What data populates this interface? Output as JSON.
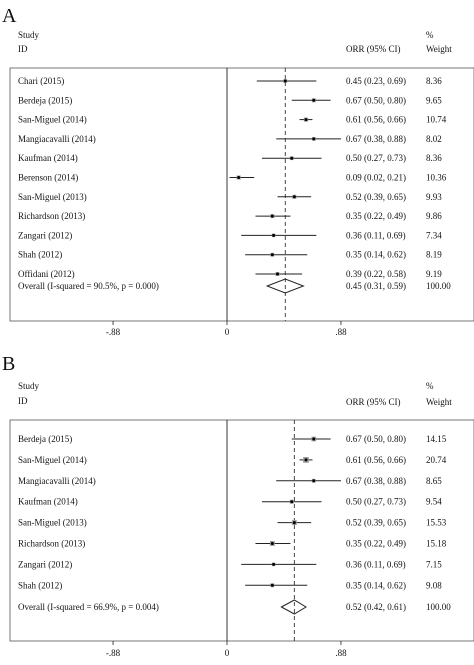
{
  "chart_data": [
    {
      "type": "forest",
      "panel": "A",
      "header": {
        "study": "Study",
        "id": "ID",
        "effect": "ORR (95% CI)",
        "pct": "%",
        "weight": "Weight"
      },
      "xticks": [
        {
          "value": -0.88,
          "label": "-.88"
        },
        {
          "value": 0,
          "label": "0"
        },
        {
          "value": 0.88,
          "label": ".88"
        }
      ],
      "xlim": [
        -0.88,
        0.88
      ],
      "pooled_line": 0.45,
      "studies": [
        {
          "name": "Chari (2015)",
          "est": 0.45,
          "lo": 0.23,
          "hi": 0.69,
          "ci_text": "0.45 (0.23, 0.69)",
          "weight": "8.36"
        },
        {
          "name": "Berdeja (2015)",
          "est": 0.67,
          "lo": 0.5,
          "hi": 0.8,
          "ci_text": "0.67 (0.50, 0.80)",
          "weight": "9.65"
        },
        {
          "name": "San-Miguel (2014)",
          "est": 0.61,
          "lo": 0.56,
          "hi": 0.66,
          "ci_text": "0.61 (0.56, 0.66)",
          "weight": "10.74"
        },
        {
          "name": "Mangiacavalli (2014)",
          "est": 0.67,
          "lo": 0.38,
          "hi": 0.88,
          "ci_text": "0.67 (0.38, 0.88)",
          "weight": "8.02"
        },
        {
          "name": "Kaufman (2014)",
          "est": 0.5,
          "lo": 0.27,
          "hi": 0.73,
          "ci_text": "0.50 (0.27, 0.73)",
          "weight": "8.36"
        },
        {
          "name": "Berenson (2014)",
          "est": 0.09,
          "lo": 0.02,
          "hi": 0.21,
          "ci_text": "0.09 (0.02, 0.21)",
          "weight": "10.36"
        },
        {
          "name": "San-Miguel (2013)",
          "est": 0.52,
          "lo": 0.39,
          "hi": 0.65,
          "ci_text": "0.52 (0.39, 0.65)",
          "weight": "9.93"
        },
        {
          "name": "Richardson (2013)",
          "est": 0.35,
          "lo": 0.22,
          "hi": 0.49,
          "ci_text": "0.35 (0.22, 0.49)",
          "weight": "9.86"
        },
        {
          "name": "Zangari (2012)",
          "est": 0.36,
          "lo": 0.11,
          "hi": 0.69,
          "ci_text": "0.36 (0.11, 0.69)",
          "weight": "7.34"
        },
        {
          "name": "Shah (2012)",
          "est": 0.35,
          "lo": 0.14,
          "hi": 0.62,
          "ci_text": "0.35 (0.14, 0.62)",
          "weight": "8.19"
        },
        {
          "name": "Offidani (2012)",
          "est": 0.39,
          "lo": 0.22,
          "hi": 0.58,
          "ci_text": "0.39 (0.22, 0.58)",
          "weight": "9.19"
        }
      ],
      "overall": {
        "name": "Overall  (I-squared = 90.5%, p = 0.000)",
        "est": 0.45,
        "lo": 0.31,
        "hi": 0.59,
        "ci_text": "0.45 (0.31, 0.59)",
        "weight": "100.00"
      }
    },
    {
      "type": "forest",
      "panel": "B",
      "header": {
        "study": "Study",
        "id": "ID",
        "effect": "ORR (95% CI)",
        "pct": "%",
        "weight": "Weight"
      },
      "xticks": [
        {
          "value": -0.88,
          "label": "-.88"
        },
        {
          "value": 0,
          "label": "0"
        },
        {
          "value": 0.88,
          "label": ".88"
        }
      ],
      "xlim": [
        -0.88,
        0.88
      ],
      "pooled_line": 0.52,
      "studies": [
        {
          "name": "Berdeja (2015)",
          "est": 0.67,
          "lo": 0.5,
          "hi": 0.8,
          "ci_text": "0.67 (0.50, 0.80)",
          "weight": "14.15"
        },
        {
          "name": "San-Miguel (2014)",
          "est": 0.61,
          "lo": 0.56,
          "hi": 0.66,
          "ci_text": "0.61 (0.56, 0.66)",
          "weight": "20.74"
        },
        {
          "name": "Mangiacavalli (2014)",
          "est": 0.67,
          "lo": 0.38,
          "hi": 0.88,
          "ci_text": "0.67 (0.38, 0.88)",
          "weight": "8.65"
        },
        {
          "name": "Kaufman (2014)",
          "est": 0.5,
          "lo": 0.27,
          "hi": 0.73,
          "ci_text": "0.50 (0.27, 0.73)",
          "weight": "9.54"
        },
        {
          "name": "San-Miguel (2013)",
          "est": 0.52,
          "lo": 0.39,
          "hi": 0.65,
          "ci_text": "0.52 (0.39, 0.65)",
          "weight": "15.53"
        },
        {
          "name": "Richardson (2013)",
          "est": 0.35,
          "lo": 0.22,
          "hi": 0.49,
          "ci_text": "0.35 (0.22, 0.49)",
          "weight": "15.18"
        },
        {
          "name": "Zangari (2012)",
          "est": 0.36,
          "lo": 0.11,
          "hi": 0.69,
          "ci_text": "0.36 (0.11, 0.69)",
          "weight": "7.15"
        },
        {
          "name": "Shah (2012)",
          "est": 0.35,
          "lo": 0.14,
          "hi": 0.62,
          "ci_text": "0.35 (0.14, 0.62)",
          "weight": "9.08"
        }
      ],
      "overall": {
        "name": "Overall  (I-squared = 66.9%, p = 0.004)",
        "est": 0.52,
        "lo": 0.42,
        "hi": 0.61,
        "ci_text": "0.52 (0.42, 0.61)",
        "weight": "100.00"
      }
    }
  ]
}
